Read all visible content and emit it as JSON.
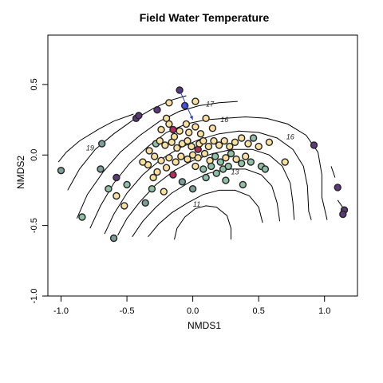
{
  "chart_data": {
    "type": "scatter",
    "title": "Field Water Temperature",
    "xlabel": "NMDS1",
    "ylabel": "NMDS2",
    "xlim": [
      -1.1,
      1.25
    ],
    "ylim": [
      -1.0,
      0.85
    ],
    "xticks": [
      "-1.0",
      "-0.5",
      "0.0",
      "0.5",
      "1.0"
    ],
    "xtick_values": [
      -1.0,
      -0.5,
      0.0,
      0.5,
      1.0
    ],
    "yticks": [
      "-1.0",
      "-0.5",
      "0.0",
      "0.5"
    ],
    "ytick_values": [
      -1.0,
      -0.5,
      0.0,
      0.5
    ],
    "grid": false,
    "legend": "none",
    "palette": {
      "yellow": "#f9e0a0",
      "green": "#8fbfa6",
      "teal": "#7b9e98",
      "purple": "#5b3a78",
      "magenta": "#b0305e",
      "blue": "#4a55d8",
      "edge": "#222222",
      "contour": "#000000"
    },
    "contours": [
      {
        "label": "19",
        "label_at": [
          -0.78,
          0.05
        ],
        "points": [
          [
            -1.02,
            -0.05
          ],
          [
            -0.96,
            0.02
          ],
          [
            -0.86,
            0.1
          ],
          [
            -0.72,
            0.18
          ],
          [
            -0.6,
            0.24
          ],
          [
            -0.45,
            0.29
          ]
        ]
      },
      {
        "label": "",
        "label_at": null,
        "points": [
          [
            -0.95,
            -0.25
          ],
          [
            -0.86,
            -0.1
          ],
          [
            -0.74,
            0.04
          ],
          [
            -0.6,
            0.15
          ],
          [
            -0.45,
            0.25
          ],
          [
            -0.3,
            0.33
          ],
          [
            -0.16,
            0.39
          ],
          [
            -0.05,
            0.42
          ]
        ]
      },
      {
        "label": "17",
        "label_at": [
          0.13,
          0.36
        ],
        "points": [
          [
            -0.88,
            -0.45
          ],
          [
            -0.8,
            -0.28
          ],
          [
            -0.68,
            -0.12
          ],
          [
            -0.55,
            0.02
          ],
          [
            -0.4,
            0.14
          ],
          [
            -0.25,
            0.24
          ],
          [
            -0.1,
            0.31
          ],
          [
            0.05,
            0.35
          ],
          [
            0.2,
            0.37
          ],
          [
            0.34,
            0.38
          ]
        ]
      },
      {
        "label": "16",
        "label_at": [
          0.24,
          0.25
        ],
        "points": [
          [
            -0.78,
            -0.52
          ],
          [
            -0.7,
            -0.36
          ],
          [
            -0.6,
            -0.2
          ],
          [
            -0.48,
            -0.06
          ],
          [
            -0.34,
            0.06
          ],
          [
            -0.2,
            0.16
          ],
          [
            -0.05,
            0.22
          ],
          [
            0.1,
            0.25
          ],
          [
            0.25,
            0.26
          ],
          [
            0.4,
            0.27
          ],
          [
            0.56,
            0.26
          ],
          [
            0.72,
            0.22
          ],
          [
            0.86,
            0.14
          ],
          [
            0.95,
            0.02
          ],
          [
            0.98,
            -0.14
          ],
          [
            0.98,
            -0.3
          ],
          [
            1.02,
            -0.46
          ]
        ]
      },
      {
        "label": "16",
        "label_at": [
          0.74,
          0.13
        ],
        "points": [
          [
            -0.67,
            -0.56
          ],
          [
            -0.6,
            -0.42
          ],
          [
            -0.5,
            -0.27
          ],
          [
            -0.38,
            -0.14
          ],
          [
            -0.24,
            -0.03
          ],
          [
            -0.1,
            0.05
          ],
          [
            0.05,
            0.11
          ],
          [
            0.2,
            0.15
          ],
          [
            0.35,
            0.17
          ],
          [
            0.5,
            0.16
          ],
          [
            0.64,
            0.12
          ],
          [
            0.76,
            0.04
          ],
          [
            0.84,
            -0.08
          ],
          [
            0.87,
            -0.22
          ],
          [
            0.88,
            -0.4
          ],
          [
            0.9,
            -0.46
          ]
        ]
      },
      {
        "label": "",
        "label_at": null,
        "points": [
          [
            -0.57,
            -0.57
          ],
          [
            -0.5,
            -0.45
          ],
          [
            -0.4,
            -0.33
          ],
          [
            -0.28,
            -0.21
          ],
          [
            -0.14,
            -0.11
          ],
          [
            0.0,
            -0.04
          ],
          [
            0.15,
            0.01
          ],
          [
            0.3,
            0.04
          ],
          [
            0.45,
            0.04
          ],
          [
            0.58,
            0.0
          ],
          [
            0.68,
            -0.08
          ],
          [
            0.74,
            -0.2
          ],
          [
            0.76,
            -0.34
          ],
          [
            0.77,
            -0.46
          ]
        ]
      },
      {
        "label": "13",
        "label_at": [
          0.32,
          -0.12
        ],
        "points": [
          [
            -0.46,
            -0.58
          ],
          [
            -0.38,
            -0.47
          ],
          [
            -0.28,
            -0.37
          ],
          [
            -0.16,
            -0.27
          ],
          [
            -0.02,
            -0.19
          ],
          [
            0.12,
            -0.13
          ],
          [
            0.26,
            -0.1
          ],
          [
            0.4,
            -0.1
          ],
          [
            0.52,
            -0.14
          ],
          [
            0.6,
            -0.22
          ],
          [
            0.64,
            -0.34
          ],
          [
            0.66,
            -0.47
          ]
        ]
      },
      {
        "label": "",
        "label_at": null,
        "points": [
          [
            -0.34,
            -0.58
          ],
          [
            -0.26,
            -0.49
          ],
          [
            -0.16,
            -0.41
          ],
          [
            -0.04,
            -0.34
          ],
          [
            0.08,
            -0.28
          ],
          [
            0.2,
            -0.25
          ],
          [
            0.32,
            -0.25
          ],
          [
            0.43,
            -0.29
          ],
          [
            0.5,
            -0.37
          ],
          [
            0.53,
            -0.48
          ]
        ]
      },
      {
        "label": "11",
        "label_at": [
          0.03,
          -0.35
        ],
        "points": [
          [
            -0.14,
            -0.6
          ],
          [
            -0.12,
            -0.52
          ],
          [
            -0.06,
            -0.44
          ],
          [
            0.02,
            -0.38
          ],
          [
            0.1,
            -0.36
          ],
          [
            0.18,
            -0.37
          ],
          [
            0.26,
            -0.43
          ],
          [
            0.29,
            -0.52
          ],
          [
            0.29,
            -0.6
          ]
        ]
      },
      {
        "label": "",
        "label_at": null,
        "points": [
          [
            1.05,
            -0.08
          ],
          [
            1.08,
            -0.16
          ]
        ]
      },
      {
        "label": "",
        "label_at": null,
        "points": [
          [
            1.1,
            -0.32
          ],
          [
            1.16,
            -0.4
          ]
        ]
      }
    ],
    "arrow": {
      "from": [
        -0.1,
        0.46
      ],
      "to": [
        0.0,
        0.25
      ],
      "color": "#2b3bd0"
    },
    "points": [
      {
        "x": -1.0,
        "y": -0.11,
        "c": "teal"
      },
      {
        "x": -0.84,
        "y": -0.44,
        "c": "green"
      },
      {
        "x": -0.6,
        "y": -0.59,
        "c": "teal"
      },
      {
        "x": -0.69,
        "y": 0.08,
        "c": "teal"
      },
      {
        "x": -0.7,
        "y": -0.1,
        "c": "teal"
      },
      {
        "x": -0.64,
        "y": -0.24,
        "c": "green"
      },
      {
        "x": -0.58,
        "y": -0.16,
        "c": "purple"
      },
      {
        "x": -0.58,
        "y": -0.29,
        "c": "yellow"
      },
      {
        "x": -0.52,
        "y": -0.36,
        "c": "yellow"
      },
      {
        "x": -0.5,
        "y": -0.21,
        "c": "green"
      },
      {
        "x": -0.43,
        "y": 0.26,
        "c": "purple"
      },
      {
        "x": -0.41,
        "y": 0.28,
        "c": "purple"
      },
      {
        "x": -0.36,
        "y": -0.34,
        "c": "teal"
      },
      {
        "x": -0.31,
        "y": -0.24,
        "c": "green"
      },
      {
        "x": -0.27,
        "y": 0.32,
        "c": "purple"
      },
      {
        "x": -0.18,
        "y": 0.37,
        "c": "yellow"
      },
      {
        "x": -0.1,
        "y": 0.46,
        "c": "purple"
      },
      {
        "x": -0.06,
        "y": 0.35,
        "c": "blue"
      },
      {
        "x": 0.02,
        "y": 0.38,
        "c": "yellow"
      },
      {
        "x": -0.2,
        "y": 0.26,
        "c": "yellow"
      },
      {
        "x": -0.18,
        "y": 0.22,
        "c": "yellow"
      },
      {
        "x": -0.24,
        "y": 0.18,
        "c": "yellow"
      },
      {
        "x": -0.15,
        "y": 0.18,
        "c": "magenta"
      },
      {
        "x": -0.14,
        "y": 0.13,
        "c": "yellow"
      },
      {
        "x": -0.1,
        "y": 0.17,
        "c": "yellow"
      },
      {
        "x": -0.05,
        "y": 0.22,
        "c": "yellow"
      },
      {
        "x": -0.03,
        "y": 0.16,
        "c": "yellow"
      },
      {
        "x": 0.02,
        "y": 0.2,
        "c": "yellow"
      },
      {
        "x": 0.06,
        "y": 0.15,
        "c": "yellow"
      },
      {
        "x": 0.04,
        "y": 0.04,
        "c": "magenta"
      },
      {
        "x": 0.1,
        "y": 0.26,
        "c": "yellow"
      },
      {
        "x": 0.15,
        "y": 0.19,
        "c": "yellow"
      },
      {
        "x": -0.28,
        "y": 0.08,
        "c": "green"
      },
      {
        "x": -0.25,
        "y": 0.1,
        "c": "yellow"
      },
      {
        "x": -0.21,
        "y": 0.07,
        "c": "yellow"
      },
      {
        "x": -0.16,
        "y": 0.09,
        "c": "yellow"
      },
      {
        "x": -0.12,
        "y": 0.05,
        "c": "yellow"
      },
      {
        "x": -0.08,
        "y": 0.08,
        "c": "yellow"
      },
      {
        "x": -0.04,
        "y": 0.1,
        "c": "yellow"
      },
      {
        "x": -0.01,
        "y": 0.06,
        "c": "yellow"
      },
      {
        "x": 0.05,
        "y": 0.08,
        "c": "yellow"
      },
      {
        "x": 0.08,
        "y": 0.1,
        "c": "yellow"
      },
      {
        "x": 0.12,
        "y": 0.06,
        "c": "yellow"
      },
      {
        "x": 0.16,
        "y": 0.1,
        "c": "yellow"
      },
      {
        "x": 0.2,
        "y": 0.07,
        "c": "yellow"
      },
      {
        "x": 0.24,
        "y": 0.1,
        "c": "yellow"
      },
      {
        "x": 0.28,
        "y": 0.06,
        "c": "yellow"
      },
      {
        "x": 0.32,
        "y": 0.09,
        "c": "yellow"
      },
      {
        "x": 0.37,
        "y": 0.12,
        "c": "yellow"
      },
      {
        "x": 0.42,
        "y": 0.08,
        "c": "yellow"
      },
      {
        "x": 0.46,
        "y": 0.12,
        "c": "green"
      },
      {
        "x": 0.5,
        "y": 0.06,
        "c": "yellow"
      },
      {
        "x": 0.58,
        "y": 0.09,
        "c": "yellow"
      },
      {
        "x": -0.33,
        "y": 0.03,
        "c": "yellow"
      },
      {
        "x": -0.29,
        "y": -0.01,
        "c": "yellow"
      },
      {
        "x": -0.24,
        "y": -0.04,
        "c": "yellow"
      },
      {
        "x": -0.18,
        "y": -0.02,
        "c": "yellow"
      },
      {
        "x": -0.13,
        "y": -0.05,
        "c": "yellow"
      },
      {
        "x": -0.09,
        "y": -0.01,
        "c": "yellow"
      },
      {
        "x": -0.04,
        "y": -0.03,
        "c": "yellow"
      },
      {
        "x": 0.0,
        "y": 0.0,
        "c": "yellow"
      },
      {
        "x": 0.04,
        "y": -0.02,
        "c": "yellow"
      },
      {
        "x": 0.09,
        "y": 0.01,
        "c": "yellow"
      },
      {
        "x": 0.13,
        "y": -0.04,
        "c": "yellow"
      },
      {
        "x": 0.17,
        "y": -0.01,
        "c": "green"
      },
      {
        "x": 0.21,
        "y": -0.05,
        "c": "green"
      },
      {
        "x": 0.25,
        "y": -0.02,
        "c": "yellow"
      },
      {
        "x": 0.29,
        "y": 0.01,
        "c": "green"
      },
      {
        "x": 0.33,
        "y": -0.03,
        "c": "yellow"
      },
      {
        "x": 0.37,
        "y": -0.06,
        "c": "green"
      },
      {
        "x": 0.4,
        "y": -0.01,
        "c": "yellow"
      },
      {
        "x": 0.44,
        "y": -0.05,
        "c": "green"
      },
      {
        "x": -0.34,
        "y": -0.07,
        "c": "yellow"
      },
      {
        "x": -0.27,
        "y": -0.12,
        "c": "yellow"
      },
      {
        "x": -0.2,
        "y": -0.09,
        "c": "yellow"
      },
      {
        "x": -0.15,
        "y": -0.14,
        "c": "magenta"
      },
      {
        "x": 0.02,
        "y": -0.08,
        "c": "yellow"
      },
      {
        "x": 0.08,
        "y": -0.1,
        "c": "green"
      },
      {
        "x": 0.14,
        "y": -0.08,
        "c": "green"
      },
      {
        "x": 0.18,
        "y": -0.13,
        "c": "green"
      },
      {
        "x": 0.23,
        "y": -0.1,
        "c": "green"
      },
      {
        "x": 0.27,
        "y": -0.08,
        "c": "green"
      },
      {
        "x": 0.52,
        "y": -0.08,
        "c": "green"
      },
      {
        "x": 0.55,
        "y": -0.1,
        "c": "green"
      },
      {
        "x": -0.38,
        "y": -0.05,
        "c": "yellow"
      },
      {
        "x": -0.3,
        "y": -0.16,
        "c": "yellow"
      },
      {
        "x": -0.22,
        "y": -0.26,
        "c": "yellow"
      },
      {
        "x": -0.08,
        "y": -0.19,
        "c": "teal"
      },
      {
        "x": 0.0,
        "y": -0.24,
        "c": "teal"
      },
      {
        "x": 0.1,
        "y": -0.16,
        "c": "green"
      },
      {
        "x": 0.25,
        "y": -0.18,
        "c": "green"
      },
      {
        "x": 0.38,
        "y": -0.21,
        "c": "green"
      },
      {
        "x": 0.7,
        "y": -0.05,
        "c": "yellow"
      },
      {
        "x": 0.92,
        "y": 0.07,
        "c": "purple"
      },
      {
        "x": 1.1,
        "y": -0.23,
        "c": "purple"
      },
      {
        "x": 1.15,
        "y": -0.39,
        "c": "purple"
      },
      {
        "x": 1.14,
        "y": -0.42,
        "c": "purple"
      }
    ]
  }
}
